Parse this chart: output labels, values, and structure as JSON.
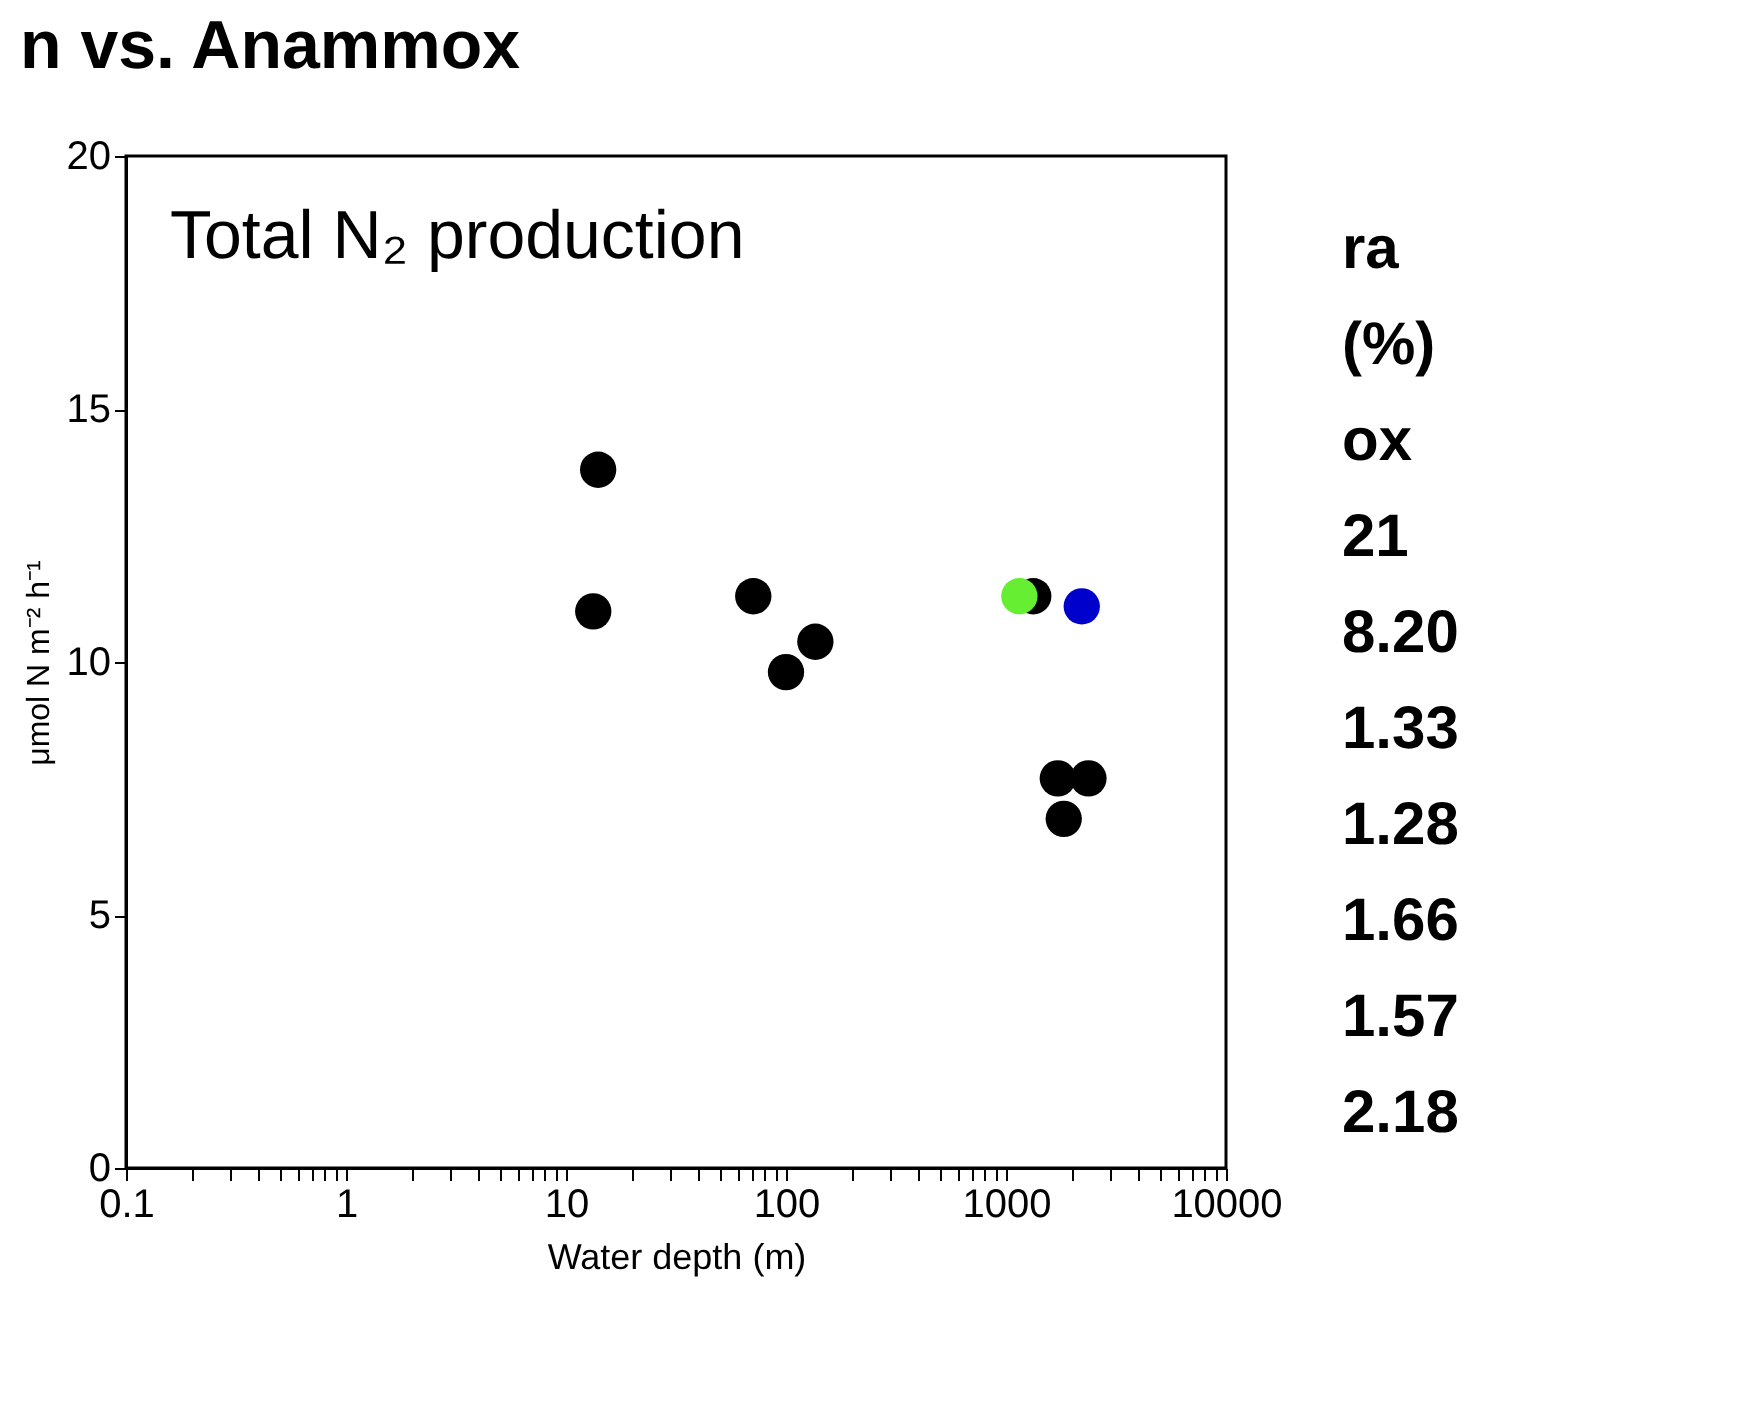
{
  "chart_data": {
    "type": "scatter",
    "title": "Total N₂ production",
    "xlabel": "Water depth (m)",
    "ylabel": "μmol N m⁻² h⁻¹",
    "log": "x",
    "xlim": [
      0.1,
      10000
    ],
    "ylim": [
      0,
      20
    ],
    "xticks": [
      0.1,
      {
        "value": 0.2,
        "label": null
      },
      {
        "value": 0.3,
        "label": null
      },
      {
        "value": 0.4,
        "label": null
      },
      {
        "value": 0.5,
        "label": null
      },
      {
        "value": 0.6,
        "label": null
      },
      {
        "value": 0.7,
        "label": null
      },
      {
        "value": 0.8,
        "label": null
      },
      {
        "value": 0.9,
        "label": null
      },
      1,
      {
        "value": 2,
        "label": null
      },
      {
        "value": 3,
        "label": null
      },
      {
        "value": 4,
        "label": null
      },
      {
        "value": 5,
        "label": null
      },
      {
        "value": 6,
        "label": null
      },
      {
        "value": 7,
        "label": null
      },
      {
        "value": 8,
        "label": null
      },
      {
        "value": 9,
        "label": null
      },
      10,
      {
        "value": 20,
        "label": null
      },
      {
        "value": 30,
        "label": null
      },
      {
        "value": 40,
        "label": null
      },
      {
        "value": 50,
        "label": null
      },
      {
        "value": 60,
        "label": null
      },
      {
        "value": 70,
        "label": null
      },
      {
        "value": 80,
        "label": null
      },
      {
        "value": 90,
        "label": null
      },
      100,
      {
        "value": 200,
        "label": null
      },
      {
        "value": 300,
        "label": null
      },
      {
        "value": 400,
        "label": null
      },
      {
        "value": 500,
        "label": null
      },
      {
        "value": 600,
        "label": null
      },
      {
        "value": 700,
        "label": null
      },
      {
        "value": 800,
        "label": null
      },
      {
        "value": 900,
        "label": null
      },
      1000,
      {
        "value": 2000,
        "label": null
      },
      {
        "value": 3000,
        "label": null
      },
      {
        "value": 4000,
        "label": null
      },
      {
        "value": 5000,
        "label": null
      },
      {
        "value": 6000,
        "label": null
      },
      {
        "value": 7000,
        "label": null
      },
      {
        "value": 8000,
        "label": null
      },
      {
        "value": 9000,
        "label": null
      },
      10000
    ],
    "yticks": [
      0,
      5,
      10,
      15,
      20
    ],
    "grid": false,
    "legend": false,
    "marker": "circle",
    "series": [
      {
        "color": "#000000",
        "x": [
          14,
          13.3,
          71,
          100,
          136,
          1330,
          1720,
          2370,
          1830
        ],
        "values": [
          13.8,
          11.0,
          11.3,
          9.8,
          10.4,
          11.3,
          7.7,
          7.7,
          6.9
        ]
      },
      {
        "color": "#66ee33",
        "x": [
          1150
        ],
        "values": [
          11.3
        ]
      },
      {
        "color": "#0000cc",
        "x": [
          2210
        ],
        "values": [
          11.1
        ]
      }
    ],
    "annotations": [
      "n vs. Anammox",
      "ra",
      "(%)",
      "ox",
      "21",
      "8.20",
      "1.33",
      "1.28",
      "1.66",
      "1.57",
      "2.18"
    ]
  }
}
